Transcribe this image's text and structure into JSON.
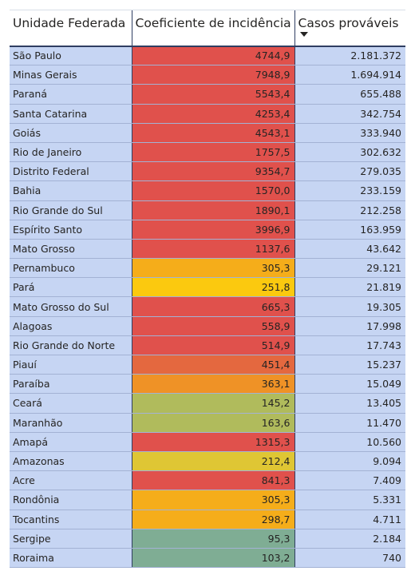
{
  "table": {
    "headers": {
      "uf": "Unidade Federada",
      "coef": "Coeficiente de incidência",
      "casos": "Casos prováveis"
    },
    "sort_icon": "sort-descending-icon",
    "colors": {
      "red": "#e0514c",
      "orange_red": "#e4683f",
      "orange": "#ef9226",
      "amber": "#f5ad1a",
      "gold": "#fbc90f",
      "yellow": "#dfc634",
      "olive": "#b0bb5c",
      "teal": "#7fad94",
      "row_background": "#c6d5f3"
    },
    "rows": [
      {
        "uf": "São Paulo",
        "coef": "4744,9",
        "casos": "2.181.372",
        "color": "#e0514c"
      },
      {
        "uf": "Minas Gerais",
        "coef": "7948,9",
        "casos": "1.694.914",
        "color": "#e0514c"
      },
      {
        "uf": "Paraná",
        "coef": "5543,4",
        "casos": "655.488",
        "color": "#e0514c"
      },
      {
        "uf": "Santa Catarina",
        "coef": "4253,4",
        "casos": "342.754",
        "color": "#e0514c"
      },
      {
        "uf": "Goiás",
        "coef": "4543,1",
        "casos": "333.940",
        "color": "#e0514c"
      },
      {
        "uf": "Rio de Janeiro",
        "coef": "1757,5",
        "casos": "302.632",
        "color": "#e0514c"
      },
      {
        "uf": "Distrito Federal",
        "coef": "9354,7",
        "casos": "279.035",
        "color": "#e0514c"
      },
      {
        "uf": "Bahia",
        "coef": "1570,0",
        "casos": "233.159",
        "color": "#e0514c"
      },
      {
        "uf": "Rio Grande do Sul",
        "coef": "1890,1",
        "casos": "212.258",
        "color": "#e0514c"
      },
      {
        "uf": "Espírito Santo",
        "coef": "3996,9",
        "casos": "163.959",
        "color": "#e0514c"
      },
      {
        "uf": "Mato Grosso",
        "coef": "1137,6",
        "casos": "43.642",
        "color": "#e0514c"
      },
      {
        "uf": "Pernambuco",
        "coef": "305,3",
        "casos": "29.121",
        "color": "#f5ad1a"
      },
      {
        "uf": "Pará",
        "coef": "251,8",
        "casos": "21.819",
        "color": "#fbc90f"
      },
      {
        "uf": "Mato Grosso do Sul",
        "coef": "665,3",
        "casos": "19.305",
        "color": "#e0514c"
      },
      {
        "uf": "Alagoas",
        "coef": "558,9",
        "casos": "17.998",
        "color": "#e0514c"
      },
      {
        "uf": "Rio Grande do Norte",
        "coef": "514,9",
        "casos": "17.743",
        "color": "#e0514c"
      },
      {
        "uf": "Piauí",
        "coef": "451,4",
        "casos": "15.237",
        "color": "#e4683f"
      },
      {
        "uf": "Paraíba",
        "coef": "363,1",
        "casos": "15.049",
        "color": "#ef9226"
      },
      {
        "uf": "Ceará",
        "coef": "145,2",
        "casos": "13.405",
        "color": "#b0bb5c"
      },
      {
        "uf": "Maranhão",
        "coef": "163,6",
        "casos": "11.470",
        "color": "#b0bb5c"
      },
      {
        "uf": "Amapá",
        "coef": "1315,3",
        "casos": "10.560",
        "color": "#e0514c"
      },
      {
        "uf": "Amazonas",
        "coef": "212,4",
        "casos": "9.094",
        "color": "#dfc634"
      },
      {
        "uf": "Acre",
        "coef": "841,3",
        "casos": "7.409",
        "color": "#e0514c"
      },
      {
        "uf": "Rondônia",
        "coef": "305,3",
        "casos": "5.331",
        "color": "#f5ad1a"
      },
      {
        "uf": "Tocantins",
        "coef": "298,7",
        "casos": "4.711",
        "color": "#f5ad1a"
      },
      {
        "uf": "Sergipe",
        "coef": "95,3",
        "casos": "2.184",
        "color": "#7fad94"
      },
      {
        "uf": "Roraima",
        "coef": "103,2",
        "casos": "740",
        "color": "#7fad94"
      }
    ]
  }
}
